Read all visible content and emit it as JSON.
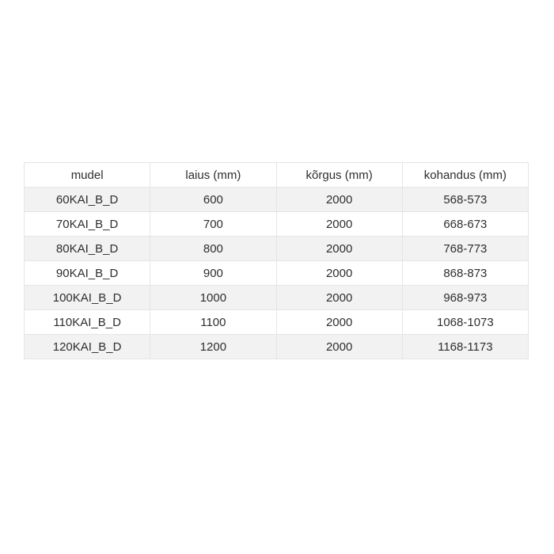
{
  "page": {
    "background": "#ffffff"
  },
  "colors": {
    "stripe_row_bg": "#f2f2f2",
    "plain_row_bg": "#ffffff",
    "header_bg": "#ffffff",
    "border": "#e5e5e5",
    "text": "#2e2e2e"
  },
  "chart_data": {
    "type": "table",
    "columns": [
      "mudel",
      "laius (mm)",
      "kõrgus (mm)",
      "kohandus (mm)"
    ],
    "rows": [
      [
        "60KAI_B_D",
        "600",
        "2000",
        "568-573"
      ],
      [
        "70KAI_B_D",
        "700",
        "2000",
        "668-673"
      ],
      [
        "80KAI_B_D",
        "800",
        "2000",
        "768-773"
      ],
      [
        "90KAI_B_D",
        "900",
        "2000",
        "868-873"
      ],
      [
        "100KAI_B_D",
        "1000",
        "2000",
        "968-973"
      ],
      [
        "110KAI_B_D",
        "1100",
        "2000",
        "1068-1073"
      ],
      [
        "120KAI_B_D",
        "1200",
        "2000",
        "1168-1173"
      ]
    ],
    "layout": {
      "grid": true,
      "striped": true,
      "first_data_row_striped": true,
      "text_align": "center"
    }
  }
}
